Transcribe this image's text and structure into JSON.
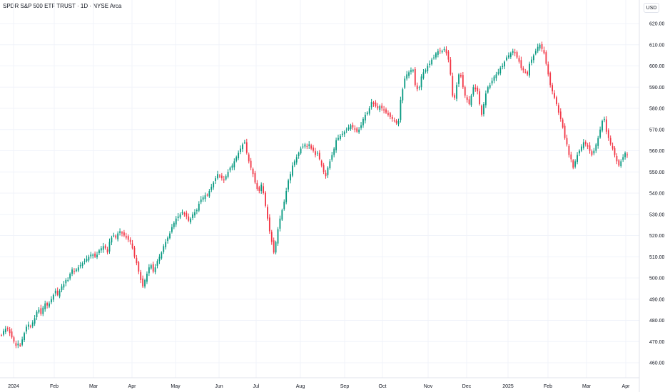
{
  "header": {
    "title": "SPDR S&P 500 ETF TRUST · 1D · NYSE Arca",
    "currency_button": "USD"
  },
  "chart_data": {
    "type": "candlestick",
    "title": "SPDR S&P 500 ETF TRUST · 1D · NYSE Arca",
    "y_unit": "USD",
    "ylim": [
      455,
      625
    ],
    "y_ticks": [
      "620.00",
      "610.00",
      "600.00",
      "590.00",
      "580.00",
      "570.00",
      "560.00",
      "550.00",
      "540.00",
      "530.00",
      "520.00",
      "510.00",
      "500.00",
      "490.00",
      "480.00",
      "470.00",
      "460.00"
    ],
    "x_ticks": [
      "2024",
      "Feb",
      "Mar",
      "Apr",
      "May",
      "Jun",
      "Jul",
      "Aug",
      "Sep",
      "Oct",
      "Nov",
      "Dec",
      "2025",
      "Feb",
      "Mar",
      "Apr"
    ],
    "grid": true,
    "colors": {
      "up": "#089981",
      "down": "#f23645",
      "grid": "#f0f3fa"
    },
    "approx_close": [
      473,
      475,
      476,
      476,
      474,
      472,
      470,
      468,
      469,
      468,
      471,
      474,
      477,
      478,
      477,
      479,
      481,
      484,
      485,
      483,
      486,
      488,
      487,
      488,
      490,
      492,
      494,
      492,
      494,
      496,
      497,
      499,
      499,
      502,
      504,
      503,
      504,
      505,
      506,
      507,
      508,
      509,
      510,
      511,
      511,
      510,
      511,
      513,
      514,
      515,
      514,
      512,
      517,
      519,
      520,
      519,
      521,
      522,
      521,
      520,
      519,
      518,
      517,
      514,
      510,
      507,
      503,
      499,
      496,
      499,
      502,
      505,
      506,
      503,
      505,
      508,
      510,
      512,
      515,
      517,
      519,
      521,
      524,
      526,
      528,
      529,
      530,
      531,
      530,
      529,
      527,
      528,
      530,
      531,
      532,
      535,
      537,
      538,
      539,
      539,
      541,
      543,
      545,
      547,
      549,
      548,
      547,
      546,
      548,
      550,
      552,
      553,
      555,
      557,
      559,
      561,
      563,
      564,
      559,
      555,
      552,
      549,
      545,
      542,
      541,
      544,
      540,
      534,
      528,
      522,
      517,
      512,
      517,
      523,
      528,
      532,
      536,
      541,
      546,
      549,
      553,
      555,
      557,
      559,
      561,
      562,
      563,
      562,
      563,
      561,
      560,
      558,
      559,
      556,
      553,
      550,
      548,
      552,
      555,
      558,
      561,
      565,
      566,
      567,
      568,
      569,
      570,
      571,
      572,
      571,
      570,
      569,
      570,
      572,
      575,
      577,
      578,
      580,
      583,
      582,
      581,
      580,
      581,
      580,
      579,
      578,
      577,
      576,
      575,
      574,
      573,
      574,
      584,
      589,
      594,
      596,
      597,
      598,
      598,
      591,
      589,
      590,
      595,
      597,
      598,
      600,
      601,
      603,
      604,
      606,
      607,
      607,
      607,
      608,
      606,
      603,
      596,
      586,
      585,
      591,
      596,
      595,
      590,
      586,
      584,
      582,
      586,
      590,
      589,
      588,
      582,
      577,
      582,
      587,
      590,
      591,
      593,
      595,
      596,
      597,
      599,
      600,
      602,
      604,
      605,
      606,
      607,
      606,
      604,
      602,
      599,
      598,
      597,
      596,
      601,
      603,
      605,
      607,
      609,
      610,
      608,
      606,
      601,
      596,
      591,
      588,
      585,
      582,
      578,
      575,
      571,
      566,
      563,
      558,
      556,
      552,
      555,
      558,
      560,
      562,
      564,
      563,
      562,
      560,
      558,
      560,
      563,
      566,
      570,
      574,
      575,
      569,
      566,
      563,
      561,
      558,
      555,
      553,
      555,
      557,
      559,
      558
    ]
  }
}
